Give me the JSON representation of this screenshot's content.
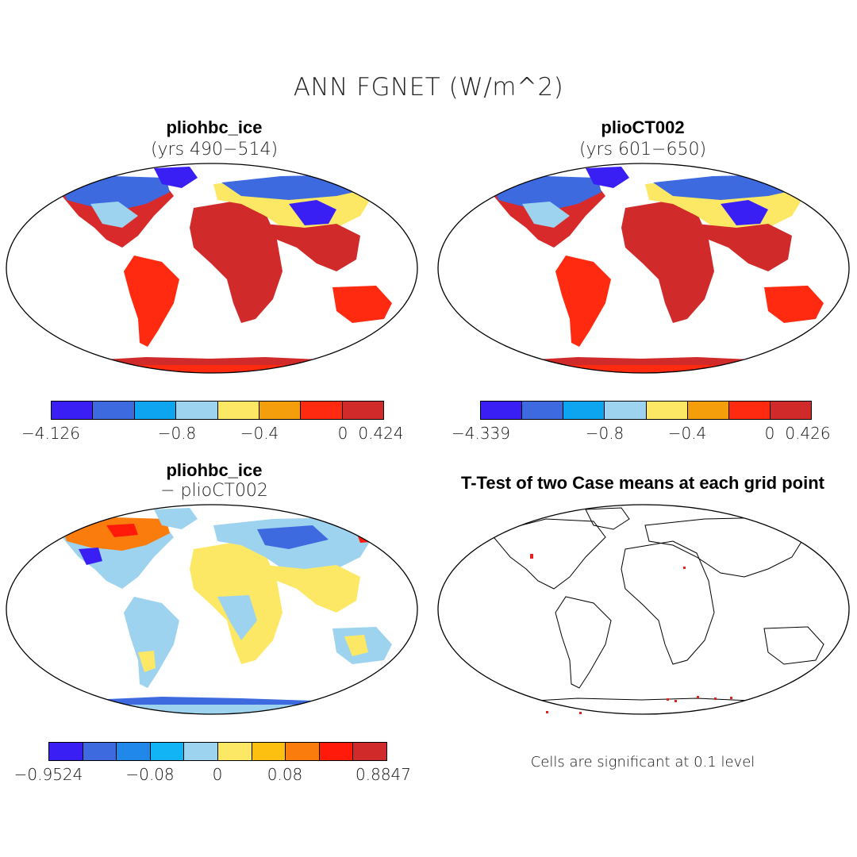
{
  "title": "ANN FGNET (W/m^2)",
  "panels": [
    {
      "title": "pliohbc_ice",
      "subtitle": "(yrs 490−514)"
    },
    {
      "title": "plioCT002",
      "subtitle": "(yrs 601−650)"
    },
    {
      "title": "pliohbc_ice",
      "subtitle": "− plioCT002"
    },
    {
      "title": "T-Test of two Case means at each grid point"
    }
  ],
  "colorbars": [
    {
      "colors": [
        "#3a1ff5",
        "#3e6ae0",
        "#0ea5f0",
        "#9dd3ee",
        "#fde866",
        "#f59e0b",
        "#ff2a10",
        "#d12a2a"
      ],
      "ticks": [
        "−4.126",
        "−0.8",
        "−0.4",
        "0",
        "0.424"
      ]
    },
    {
      "colors": [
        "#3a1ff5",
        "#3e6ae0",
        "#0ea5f0",
        "#9dd3ee",
        "#fde866",
        "#f59e0b",
        "#ff2a10",
        "#d12a2a"
      ],
      "ticks": [
        "−4.339",
        "−0.8",
        "−0.4",
        "0",
        "0.426"
      ]
    },
    {
      "colors": [
        "#3a1ff5",
        "#3e6ae0",
        "#1f88e8",
        "#12b4f5",
        "#9dd3ee",
        "#fde866",
        "#fdbf10",
        "#f97c0c",
        "#ff1a0a",
        "#d12a2a"
      ],
      "ticks": [
        "−0.9524",
        "−0.08",
        "0",
        "0.08",
        "0.8847"
      ]
    }
  ],
  "significance_note": "Cells are significant at 0.1 level",
  "colors": {
    "sea": "#ffffff",
    "outline": "#000000",
    "significant": "#e82020"
  }
}
